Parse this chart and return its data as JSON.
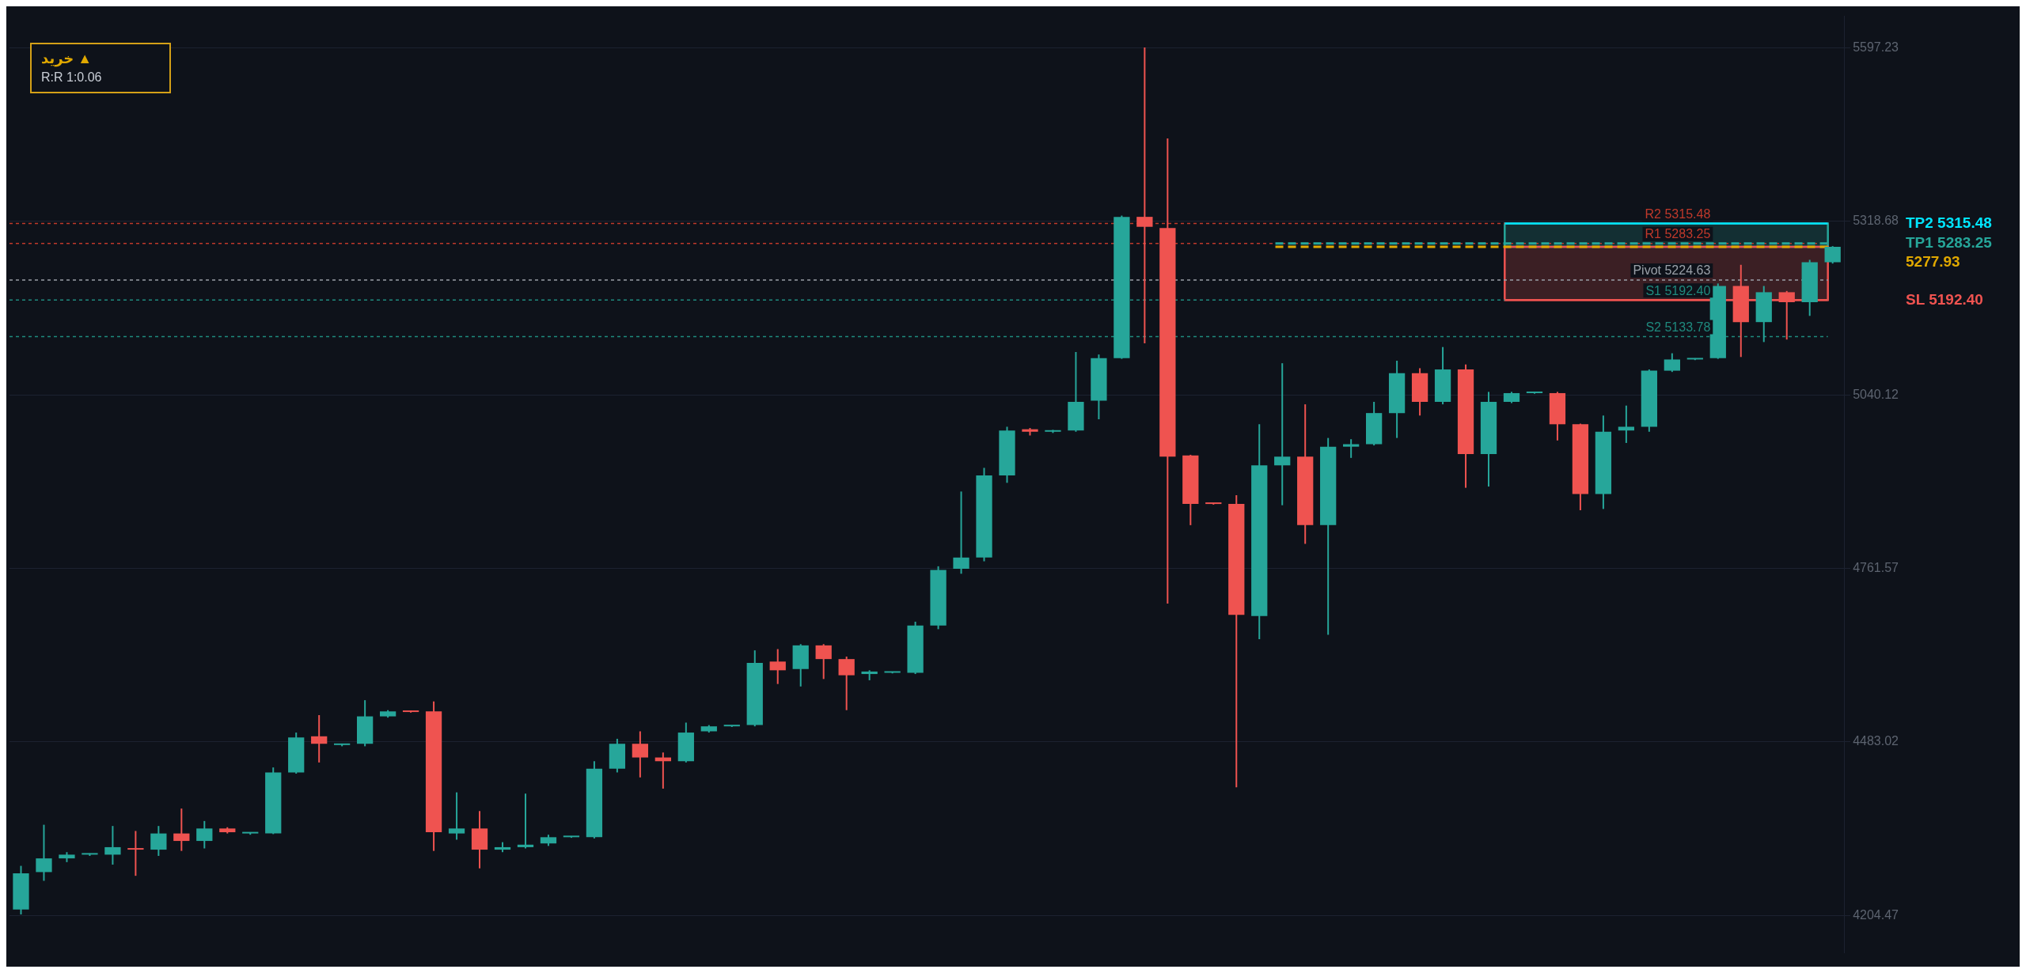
{
  "chart_data": {
    "type": "candlestick",
    "categories": [
      null,
      null,
      null,
      null,
      null,
      null,
      null,
      null,
      null,
      null,
      null,
      null,
      null,
      null,
      null,
      null,
      null,
      null,
      null,
      null,
      null,
      null,
      null,
      null,
      null,
      null,
      null,
      null,
      null,
      null,
      null,
      null,
      null,
      null,
      null,
      null,
      null,
      null,
      null,
      null,
      null,
      null,
      null,
      null,
      null,
      null,
      null,
      null,
      null,
      null,
      null,
      null,
      null,
      null,
      null,
      null,
      null,
      null,
      null,
      null,
      null,
      null,
      null,
      null,
      null,
      null,
      null,
      null,
      null,
      null,
      null,
      null,
      null,
      null,
      null,
      null,
      null,
      null,
      null,
      null
    ],
    "ohlc": [
      [
        4214,
        4284,
        4206,
        4272
      ],
      [
        4274,
        4350,
        4260,
        4296
      ],
      [
        4296,
        4306,
        4290,
        4302
      ],
      [
        4302,
        4304,
        4300,
        4302
      ],
      [
        4302,
        4348,
        4286,
        4314
      ],
      [
        4312,
        4340,
        4268,
        4310
      ],
      [
        4310,
        4348,
        4300,
        4336
      ],
      [
        4336,
        4376,
        4308,
        4324
      ],
      [
        4324,
        4356,
        4312,
        4344
      ],
      [
        4344,
        4346,
        4336,
        4338
      ],
      [
        4336,
        4338,
        4334,
        4337
      ],
      [
        4336,
        4442,
        4335,
        4434
      ],
      [
        4434,
        4498,
        4432,
        4490
      ],
      [
        4492,
        4526,
        4450,
        4480
      ],
      [
        4478,
        4480,
        4476,
        4479
      ],
      [
        4480,
        4550,
        4476,
        4524
      ],
      [
        4524,
        4534,
        4522,
        4532
      ],
      [
        4532,
        4533,
        4530,
        4531
      ],
      [
        4532,
        4548,
        4308,
        4338
      ],
      [
        4336,
        4402,
        4326,
        4344
      ],
      [
        4344,
        4372,
        4280,
        4310
      ],
      [
        4310,
        4322,
        4306,
        4314
      ],
      [
        4314,
        4400,
        4312,
        4318
      ],
      [
        4320,
        4334,
        4316,
        4330
      ],
      [
        4330,
        4331,
        4329,
        4331
      ],
      [
        4330,
        4452,
        4328,
        4440
      ],
      [
        4440,
        4488,
        4434,
        4480
      ],
      [
        4480,
        4500,
        4426,
        4458
      ],
      [
        4458,
        4466,
        4408,
        4452
      ],
      [
        4452,
        4514,
        4450,
        4498
      ],
      [
        4500,
        4510,
        4498,
        4508
      ],
      [
        4508,
        4509,
        4507,
        4509
      ],
      [
        4510,
        4630,
        4508,
        4610
      ],
      [
        4612,
        4632,
        4576,
        4598
      ],
      [
        4600,
        4640,
        4572,
        4638
      ],
      [
        4638,
        4640,
        4584,
        4616
      ],
      [
        4616,
        4620,
        4534,
        4590
      ],
      [
        4592,
        4598,
        4582,
        4596
      ],
      [
        4594,
        4595,
        4593,
        4595
      ],
      [
        4594,
        4676,
        4592,
        4670
      ],
      [
        4670,
        4765,
        4664,
        4759
      ],
      [
        4761,
        4885,
        4753,
        4779
      ],
      [
        4779,
        4923,
        4773,
        4911
      ],
      [
        4911,
        4989,
        4899,
        4983
      ],
      [
        4985,
        4987,
        4975,
        4981
      ],
      [
        4981,
        4984,
        4979,
        4983
      ],
      [
        4983,
        5109,
        4981,
        5029
      ],
      [
        5031,
        5105,
        5001,
        5099
      ],
      [
        5099,
        5328,
        5098,
        5326
      ],
      [
        5326,
        5598,
        5123,
        5310
      ],
      [
        5308,
        5452,
        4705,
        4941
      ],
      [
        4943,
        4944,
        4831,
        4865
      ],
      [
        4865,
        4866,
        4864,
        4865
      ],
      [
        4865,
        4879,
        4410,
        4687
      ],
      [
        4685,
        4993,
        4648,
        4927
      ],
      [
        4927,
        5091,
        4863,
        4941
      ],
      [
        4941,
        5025,
        4801,
        4831
      ],
      [
        4831,
        4971,
        4655,
        4957
      ],
      [
        4957,
        4969,
        4939,
        4961
      ],
      [
        4961,
        5029,
        4959,
        5011
      ],
      [
        5011,
        5095,
        4971,
        5075
      ],
      [
        5075,
        5083,
        5007,
        5029
      ],
      [
        5029,
        5117,
        5025,
        5081
      ],
      [
        5081,
        5089,
        4891,
        4945
      ],
      [
        4945,
        5045,
        4893,
        5029
      ],
      [
        5029,
        5045,
        5027,
        5043
      ],
      [
        5043,
        5044,
        5042,
        5043
      ],
      [
        5043,
        5045,
        4967,
        4993
      ],
      [
        4993,
        4994,
        4855,
        4881
      ],
      [
        4881,
        5007,
        4857,
        4981
      ],
      [
        4983,
        5023,
        4963,
        4989
      ],
      [
        4989,
        5081,
        4981,
        5079
      ],
      [
        5079,
        5107,
        5077,
        5097
      ],
      [
        5097,
        5099,
        5096,
        5098
      ],
      [
        5099,
        5219,
        5098,
        5215
      ],
      [
        5215,
        5249,
        5101,
        5157
      ],
      [
        5157,
        5215,
        5125,
        5205
      ],
      [
        5205,
        5207,
        5129,
        5189
      ],
      [
        5189,
        5257,
        5167,
        5253
      ],
      [
        5253,
        5279,
        5251,
        5278
      ]
    ],
    "colors": [
      "#26a69a",
      "#26a69a",
      "#26a69a",
      "#26a69a",
      "#26a69a",
      "#ef5350",
      "#26a69a",
      "#ef5350",
      "#26a69a",
      "#ef5350",
      "#26a69a",
      "#26a69a",
      "#26a69a",
      "#ef5350",
      "#26a69a",
      "#26a69a",
      "#26a69a",
      "#ef5350",
      "#ef5350",
      "#26a69a",
      "#ef5350",
      "#26a69a",
      "#26a69a",
      "#26a69a",
      "#26a69a",
      "#26a69a",
      "#26a69a",
      "#ef5350",
      "#ef5350",
      "#26a69a",
      "#26a69a",
      "#26a69a",
      "#26a69a",
      "#ef5350",
      "#26a69a",
      "#ef5350",
      "#ef5350",
      "#26a69a",
      "#26a69a",
      "#26a69a",
      "#26a69a",
      "#26a69a",
      "#26a69a",
      "#26a69a",
      "#ef5350",
      "#26a69a",
      "#26a69a",
      "#26a69a",
      "#26a69a",
      "#ef5350",
      "#ef5350",
      "#ef5350",
      "#ef5350",
      "#ef5350",
      "#26a69a",
      "#26a69a",
      "#ef5350",
      "#26a69a",
      "#26a69a",
      "#26a69a",
      "#26a69a",
      "#ef5350",
      "#26a69a",
      "#ef5350",
      "#26a69a",
      "#26a69a",
      "#26a69a",
      "#ef5350",
      "#ef5350",
      "#26a69a",
      "#26a69a",
      "#26a69a",
      "#26a69a",
      "#26a69a",
      "#26a69a",
      "#ef5350",
      "#26a69a",
      "#ef5350",
      "#26a69a",
      "#26a69a"
    ],
    "ylim": [
      4145,
      5648
    ],
    "yticks": [
      4204.47,
      4483.02,
      4761.57,
      5040.12,
      5318.68,
      5597.23
    ],
    "grid": "y",
    "tick_labels": "y",
    "legend": false,
    "bands": [
      {
        "axis": "y",
        "from": 5277.93,
        "to": 5315.48,
        "color": "#26a69a"
      },
      {
        "axis": "y",
        "from": 5192.4,
        "to": 5277.93,
        "color": "#ef5350"
      }
    ],
    "ref_lines": [
      {
        "axis": "y",
        "value": 5315.48,
        "label": "R2 5315.48",
        "color": "#c0392b",
        "line_style": "dotted"
      },
      {
        "axis": "y",
        "value": 5283.25,
        "label": "R1 5283.25",
        "color": "#c0392b",
        "line_style": "dotted"
      },
      {
        "axis": "y",
        "value": 5224.63,
        "label": "Pivot 5224.63",
        "color": "#9aa0a8",
        "line_style": "dotted"
      },
      {
        "axis": "y",
        "value": 5192.4,
        "label": "S1 5192.40",
        "color": "#1f8a7e",
        "line_style": "dotted"
      },
      {
        "axis": "y",
        "value": 5133.78,
        "label": "S2 5133.78",
        "color": "#1f8a7e",
        "line_style": "dotted"
      },
      {
        "axis": "y",
        "value": 5315.48,
        "label": "TP2 5315.48",
        "color": "#00e5ff",
        "line_style": "solid"
      },
      {
        "axis": "y",
        "value": 5283.25,
        "label": "TP1 5283.25",
        "color": "#26a69a",
        "line_style": "dashed"
      },
      {
        "axis": "y",
        "value": 5277.93,
        "label": "5277.93",
        "color": "#e0a800",
        "line_style": "dashed"
      },
      {
        "axis": "y",
        "value": 5192.4,
        "label": "SL 5192.40",
        "color": "#ef5350",
        "line_style": "solid"
      }
    ],
    "annotations": [
      "خرید ▲",
      "R:R  1:0.06"
    ]
  }
}
